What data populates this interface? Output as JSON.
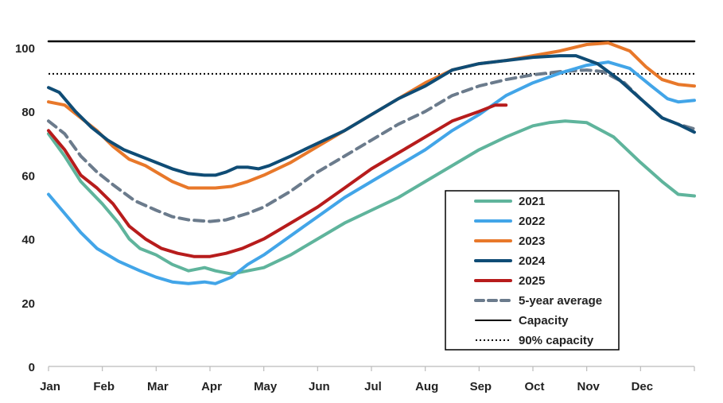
{
  "chart_data": {
    "type": "line",
    "title": "",
    "xlabel": "",
    "ylabel": "",
    "ylim": [
      0,
      105
    ],
    "yticks": [
      "0",
      "20",
      "40",
      "60",
      "80",
      "100"
    ],
    "categories": [
      "Jan",
      "Feb",
      "Mar",
      "Apr",
      "May",
      "Jun",
      "Jul",
      "Aug",
      "Sep",
      "Oct",
      "Nov",
      "Dec"
    ],
    "grid": false,
    "legend_position": "bottom-right",
    "series": [
      {
        "name": "2021",
        "color": "#5fb49c",
        "style": "solid",
        "points": [
          [
            0,
            73
          ],
          [
            0.3,
            66
          ],
          [
            0.6,
            58
          ],
          [
            1.0,
            51
          ],
          [
            1.3,
            45
          ],
          [
            1.5,
            40
          ],
          [
            1.7,
            37
          ],
          [
            2.0,
            35
          ],
          [
            2.3,
            32
          ],
          [
            2.6,
            30
          ],
          [
            2.9,
            31
          ],
          [
            3.1,
            30
          ],
          [
            3.4,
            29
          ],
          [
            3.7,
            30
          ],
          [
            4.0,
            31
          ],
          [
            4.5,
            35
          ],
          [
            5.0,
            40
          ],
          [
            5.5,
            45
          ],
          [
            6.0,
            49
          ],
          [
            6.5,
            53
          ],
          [
            7.0,
            58
          ],
          [
            7.5,
            63
          ],
          [
            8.0,
            68
          ],
          [
            8.5,
            72
          ],
          [
            9.0,
            75.5
          ],
          [
            9.3,
            76.5
          ],
          [
            9.6,
            77
          ],
          [
            10.0,
            76.5
          ],
          [
            10.5,
            72
          ],
          [
            11.0,
            64
          ],
          [
            11.4,
            58
          ],
          [
            11.7,
            54
          ],
          [
            12.0,
            53.5
          ]
        ]
      },
      {
        "name": "2022",
        "color": "#42a5e8",
        "style": "solid",
        "points": [
          [
            0,
            54
          ],
          [
            0.3,
            48
          ],
          [
            0.6,
            42
          ],
          [
            0.9,
            37
          ],
          [
            1.3,
            33
          ],
          [
            1.7,
            30
          ],
          [
            2.0,
            28
          ],
          [
            2.3,
            26.5
          ],
          [
            2.6,
            26
          ],
          [
            2.9,
            26.5
          ],
          [
            3.1,
            26
          ],
          [
            3.4,
            28
          ],
          [
            3.7,
            32
          ],
          [
            4.0,
            35
          ],
          [
            4.5,
            41
          ],
          [
            5.0,
            47
          ],
          [
            5.5,
            53
          ],
          [
            6.0,
            58
          ],
          [
            6.5,
            63
          ],
          [
            7.0,
            68
          ],
          [
            7.5,
            74
          ],
          [
            8.0,
            79
          ],
          [
            8.5,
            85
          ],
          [
            9.0,
            89
          ],
          [
            9.5,
            92
          ],
          [
            10.0,
            94.5
          ],
          [
            10.4,
            95.5
          ],
          [
            10.8,
            93.5
          ],
          [
            11.2,
            88
          ],
          [
            11.5,
            84
          ],
          [
            11.7,
            83
          ],
          [
            12.0,
            83.5
          ]
        ]
      },
      {
        "name": "2023",
        "color": "#e8782a",
        "style": "solid",
        "points": [
          [
            0,
            83
          ],
          [
            0.3,
            82
          ],
          [
            0.6,
            78
          ],
          [
            0.9,
            74
          ],
          [
            1.2,
            69
          ],
          [
            1.5,
            65
          ],
          [
            1.8,
            63
          ],
          [
            2.0,
            61
          ],
          [
            2.3,
            58
          ],
          [
            2.6,
            56
          ],
          [
            2.9,
            56
          ],
          [
            3.1,
            56
          ],
          [
            3.4,
            56.5
          ],
          [
            3.7,
            58
          ],
          [
            4.0,
            60
          ],
          [
            4.5,
            64
          ],
          [
            5.0,
            69
          ],
          [
            5.5,
            74
          ],
          [
            6.0,
            79
          ],
          [
            6.5,
            84
          ],
          [
            7.0,
            89
          ],
          [
            7.5,
            93
          ],
          [
            8.0,
            95
          ],
          [
            8.5,
            96
          ],
          [
            9.0,
            97.5
          ],
          [
            9.5,
            99
          ],
          [
            10.0,
            101
          ],
          [
            10.4,
            101.5
          ],
          [
            10.8,
            99
          ],
          [
            11.1,
            94
          ],
          [
            11.4,
            90
          ],
          [
            11.7,
            88.5
          ],
          [
            12.0,
            88
          ]
        ]
      },
      {
        "name": "2024",
        "color": "#0f4c75",
        "style": "solid",
        "points": [
          [
            0,
            87.5
          ],
          [
            0.2,
            86
          ],
          [
            0.5,
            80
          ],
          [
            0.8,
            75
          ],
          [
            1.1,
            71
          ],
          [
            1.4,
            68
          ],
          [
            1.7,
            66
          ],
          [
            2.0,
            64
          ],
          [
            2.3,
            62
          ],
          [
            2.6,
            60.5
          ],
          [
            2.9,
            60
          ],
          [
            3.1,
            60
          ],
          [
            3.3,
            61
          ],
          [
            3.5,
            62.5
          ],
          [
            3.7,
            62.5
          ],
          [
            3.9,
            62
          ],
          [
            4.1,
            63
          ],
          [
            4.5,
            66
          ],
          [
            5.0,
            70
          ],
          [
            5.5,
            74
          ],
          [
            6.0,
            79
          ],
          [
            6.5,
            84
          ],
          [
            7.0,
            88
          ],
          [
            7.5,
            93
          ],
          [
            8.0,
            95
          ],
          [
            8.5,
            96
          ],
          [
            9.0,
            97
          ],
          [
            9.5,
            97.5
          ],
          [
            9.8,
            97.5
          ],
          [
            10.2,
            95
          ],
          [
            10.6,
            90
          ],
          [
            11.0,
            84
          ],
          [
            11.4,
            78
          ],
          [
            11.7,
            76
          ],
          [
            12.0,
            73.5
          ]
        ]
      },
      {
        "name": "2025",
        "color": "#b71c1c",
        "style": "solid",
        "points": [
          [
            0,
            74
          ],
          [
            0.3,
            68
          ],
          [
            0.6,
            60
          ],
          [
            0.9,
            56
          ],
          [
            1.2,
            51
          ],
          [
            1.5,
            44
          ],
          [
            1.8,
            40
          ],
          [
            2.1,
            37
          ],
          [
            2.4,
            35.5
          ],
          [
            2.7,
            34.5
          ],
          [
            3.0,
            34.5
          ],
          [
            3.3,
            35.5
          ],
          [
            3.6,
            37
          ],
          [
            4.0,
            40
          ],
          [
            4.5,
            45
          ],
          [
            5.0,
            50
          ],
          [
            5.5,
            56
          ],
          [
            6.0,
            62
          ],
          [
            6.5,
            67
          ],
          [
            7.0,
            72
          ],
          [
            7.5,
            77
          ],
          [
            8.0,
            80
          ],
          [
            8.3,
            82
          ],
          [
            8.5,
            82
          ]
        ]
      },
      {
        "name": "5-year average",
        "color": "#6b7b8c",
        "style": "dashed",
        "points": [
          [
            0,
            77
          ],
          [
            0.3,
            73
          ],
          [
            0.6,
            66
          ],
          [
            0.9,
            61
          ],
          [
            1.2,
            57
          ],
          [
            1.6,
            52
          ],
          [
            2.0,
            49
          ],
          [
            2.3,
            47
          ],
          [
            2.6,
            46
          ],
          [
            3.0,
            45.5
          ],
          [
            3.3,
            46
          ],
          [
            3.7,
            48
          ],
          [
            4.0,
            50
          ],
          [
            4.5,
            55
          ],
          [
            5.0,
            61
          ],
          [
            5.5,
            66
          ],
          [
            6.0,
            71
          ],
          [
            6.5,
            76
          ],
          [
            7.0,
            80
          ],
          [
            7.5,
            85
          ],
          [
            8.0,
            88
          ],
          [
            8.5,
            90
          ],
          [
            9.0,
            91.5
          ],
          [
            9.5,
            92.5
          ],
          [
            10.0,
            93
          ],
          [
            10.3,
            92.5
          ],
          [
            10.7,
            89
          ],
          [
            11.0,
            84
          ],
          [
            11.4,
            78
          ],
          [
            11.7,
            76
          ],
          [
            12.0,
            74.5
          ]
        ]
      },
      {
        "name": "Capacity",
        "color": "#000000",
        "style": "solid",
        "points": [
          [
            0,
            102
          ],
          [
            12,
            102
          ]
        ]
      },
      {
        "name": "90% capacity",
        "color": "#000000",
        "style": "dotted",
        "points": [
          [
            0,
            91.8
          ],
          [
            12,
            91.8
          ]
        ]
      }
    ]
  }
}
